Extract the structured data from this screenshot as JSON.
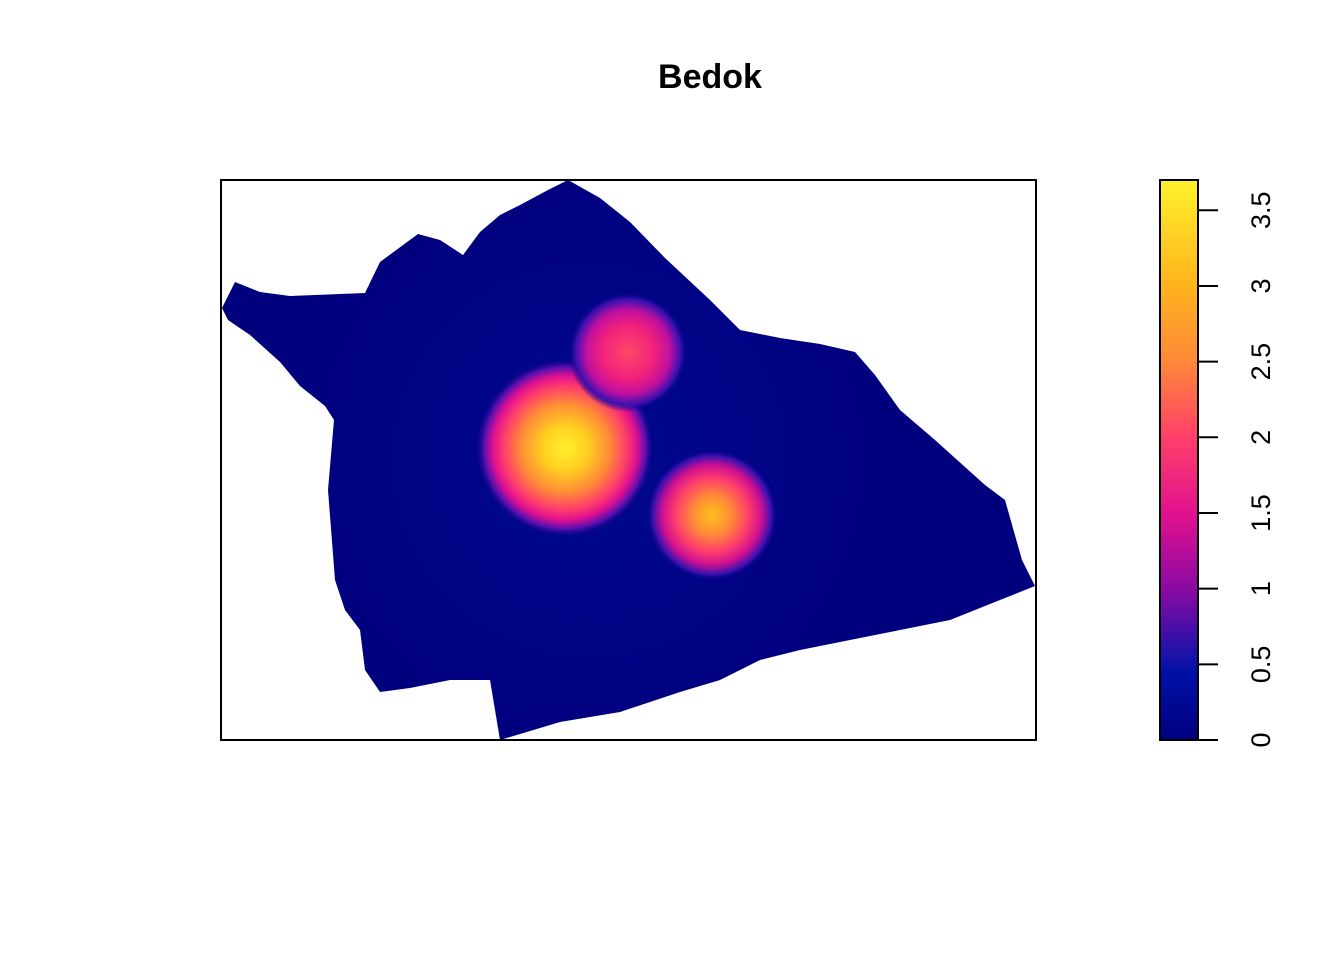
{
  "title": "Bedok",
  "colorbar": {
    "tick_labels": [
      "0",
      "0.5",
      "1",
      "1.5",
      "2",
      "2.5",
      "3",
      "3.5"
    ],
    "tick_values": [
      0,
      0.5,
      1,
      1.5,
      2,
      2.5,
      3,
      3.5
    ],
    "range": [
      0,
      3.7
    ],
    "palette": [
      "#00007f",
      "#0010a6",
      "#8a0aa3",
      "#e0108f",
      "#ff4a63",
      "#ff8a38",
      "#ffb61c",
      "#fff12c"
    ]
  },
  "chart_data": {
    "type": "heatmap",
    "title": "Bedok",
    "xlabel": "",
    "ylabel": "",
    "value_range": [
      0,
      3.7
    ],
    "hotspots": [
      {
        "peak": 3.7
      },
      {
        "peak": 2.6
      },
      {
        "peak": 3.0
      }
    ]
  }
}
